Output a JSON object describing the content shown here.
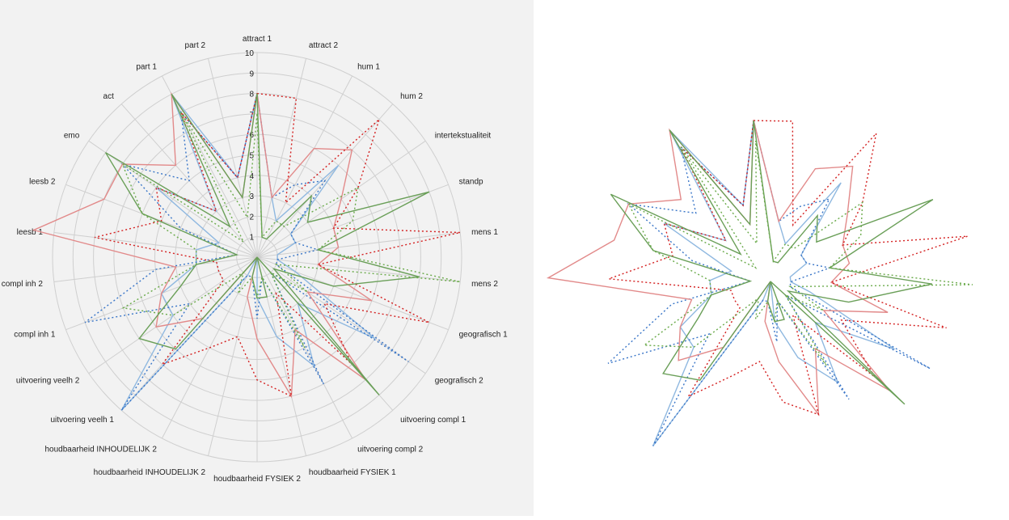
{
  "colors": {
    "blue": "#8fb8e0",
    "blue_dotted": "#3a76c8",
    "red": "#e28a8a",
    "red_dotted": "#d42020",
    "green": "#6a9f58",
    "green_dotted": "#6aaa4a",
    "grid": "#cfcfcf",
    "panel_bg": "#f2f2f2"
  },
  "chart_data": [
    {
      "type": "radar",
      "rmax": 10,
      "ticks": [
        "1",
        "2",
        "3",
        "4",
        "5",
        "6",
        "7",
        "8",
        "9",
        "10"
      ],
      "axes": [
        "attract 1",
        "attract 2",
        "hum 1",
        "hum 2",
        "intertekstualiteit",
        "standp",
        "mens 1",
        "mens 2",
        "geografisch 1",
        "geografisch 2",
        "uitvoering compl 1",
        "uitvoering compl 2",
        "houdbaarheid FYSIEK 1",
        "houdbaarheid FYSIEK 2",
        "houdbaarheid INHOUDELIJK 2",
        "houdbaarheid INHOUDELIJK 2",
        "uitvoering veelh 1",
        "uitvoering veelh 2",
        "compl inh 1",
        "compl inh 2",
        "leesb 1",
        "leesb 2",
        "emo",
        "act",
        "part 1",
        "part 2"
      ],
      "series": [
        {
          "style": "blue",
          "values": [
            8,
            3,
            2,
            6,
            2,
            2,
            1,
            1,
            2,
            7,
            3,
            6,
            4,
            2,
            0,
            1,
            10,
            5,
            5,
            3,
            3,
            2,
            6,
            3,
            9,
            4
          ]
        },
        {
          "style": "blue_dotted",
          "values": [
            8,
            3,
            4,
            5,
            2,
            2,
            3,
            1,
            1,
            9,
            1,
            7,
            1,
            3,
            1,
            1,
            10,
            4,
            9,
            5,
            1,
            4,
            8,
            5,
            8,
            4
          ]
        },
        {
          "style": "red",
          "values": [
            8,
            3,
            6,
            7,
            5,
            4,
            4,
            3,
            6,
            3,
            8,
            4,
            7,
            4,
            2,
            0,
            4,
            6,
            5,
            4,
            11,
            8,
            8,
            6,
            9,
            3
          ]
        },
        {
          "style": "red_dotted",
          "values": [
            8,
            8,
            3,
            9,
            6,
            4,
            10,
            3,
            9,
            4,
            7,
            2,
            7,
            6,
            4,
            5,
            7,
            2,
            2,
            2,
            8,
            5,
            6,
            3,
            8,
            4
          ]
        },
        {
          "style": "green",
          "values": [
            8,
            1,
            1,
            4,
            3,
            9,
            3,
            8,
            4,
            1,
            9,
            0,
            2,
            2,
            1,
            0,
            6,
            7,
            4,
            3,
            1,
            6,
            9,
            2,
            9,
            3
          ]
        },
        {
          "style": "green_dotted",
          "values": [
            7,
            1,
            2,
            2,
            6,
            5,
            3,
            10,
            1,
            3,
            1,
            5,
            1,
            2,
            1,
            2,
            1,
            5,
            7,
            3,
            3,
            6,
            8,
            1,
            8,
            2
          ]
        }
      ]
    },
    {
      "type": "radar",
      "rmax": 10,
      "series_ref": "same-as-left"
    }
  ]
}
